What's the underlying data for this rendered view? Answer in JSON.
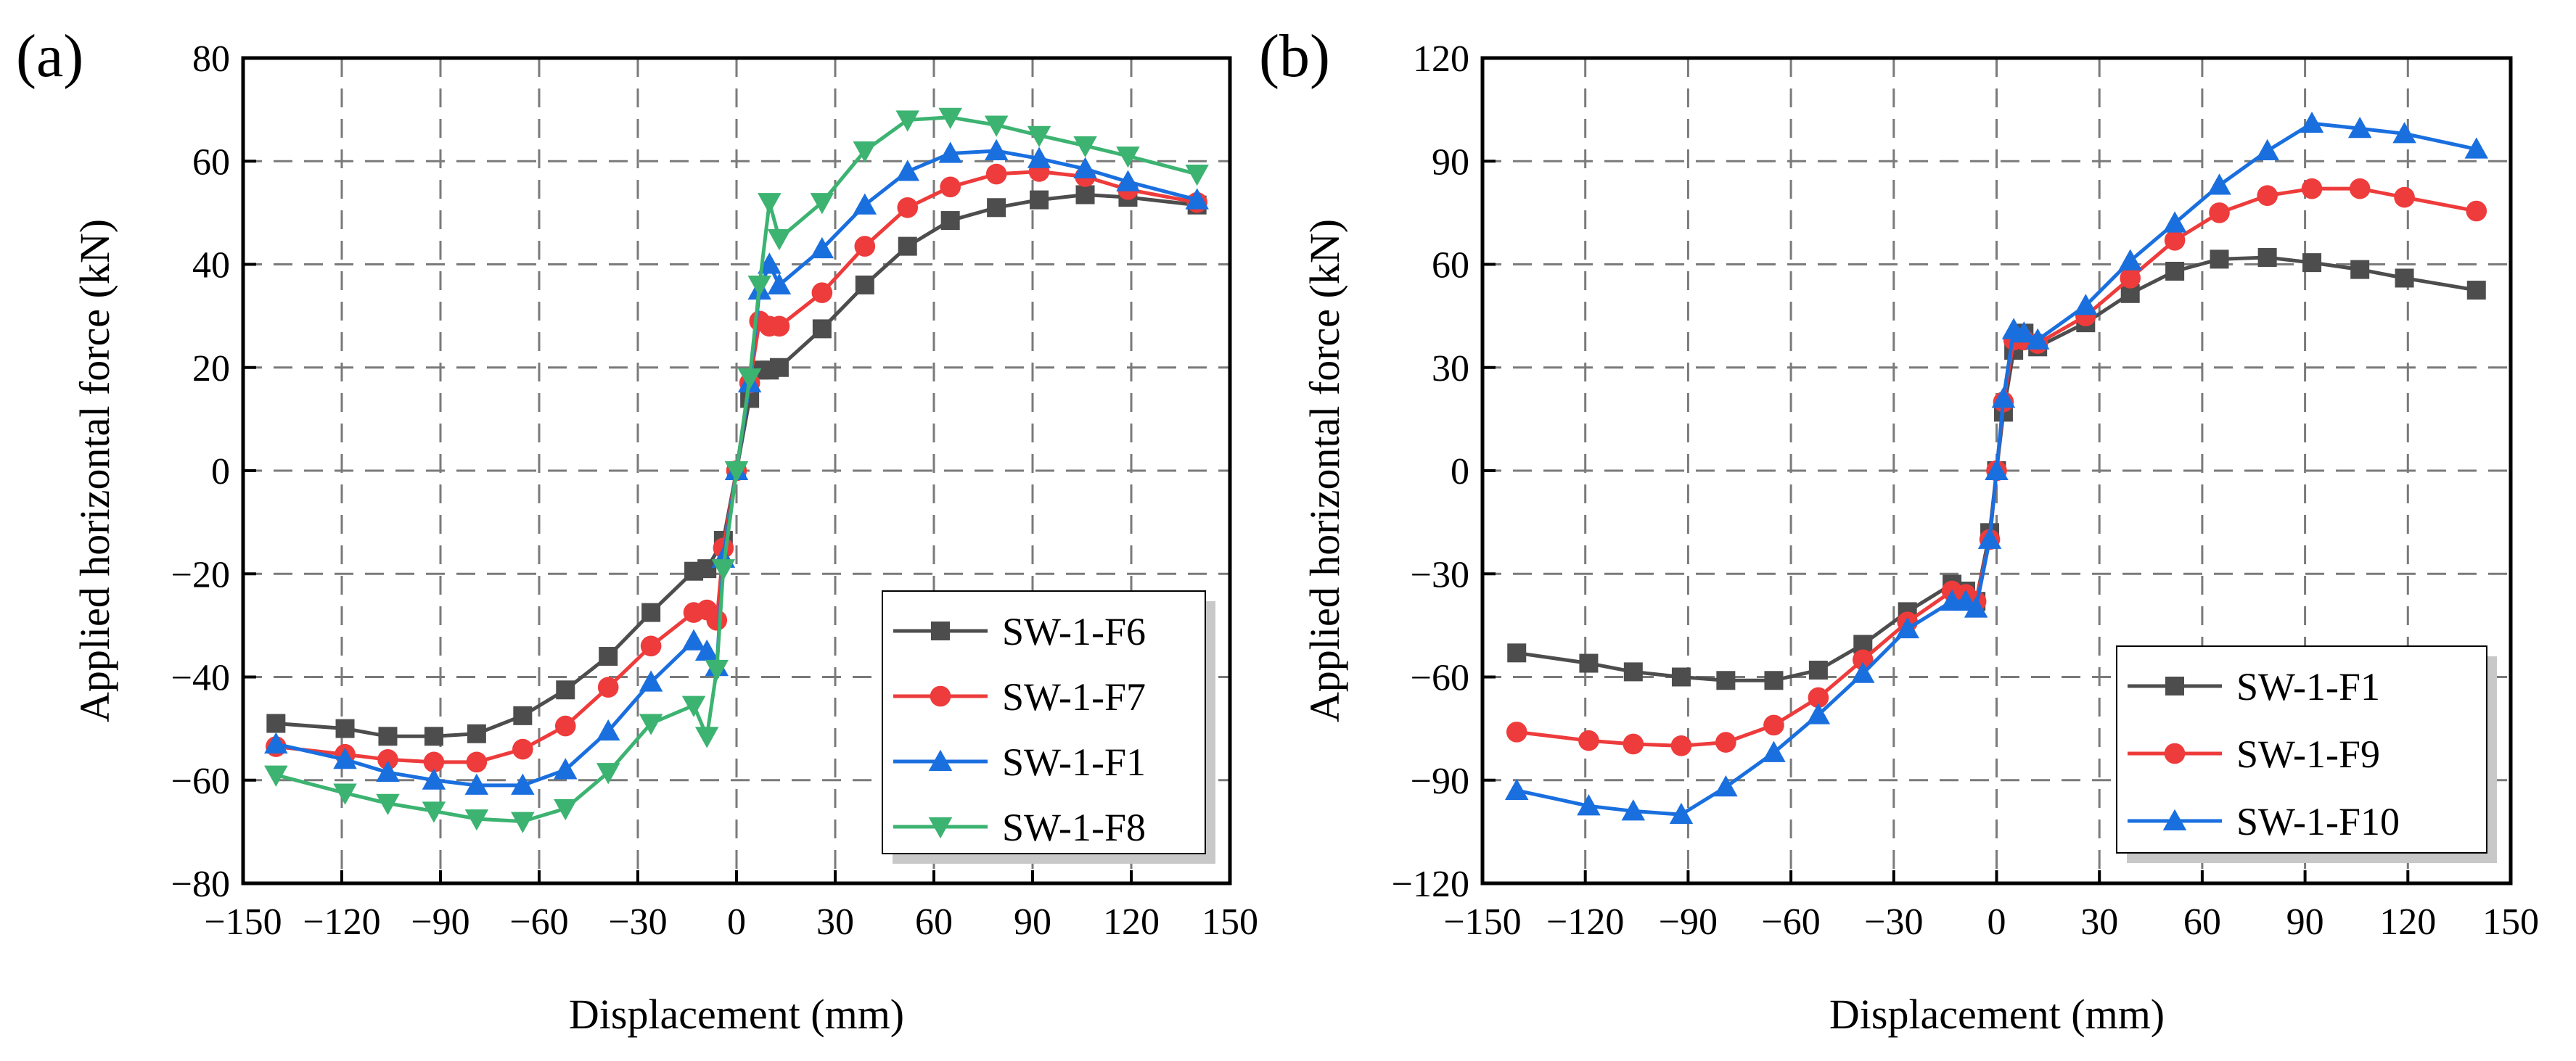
{
  "chart_data": [
    {
      "panel_label": "(a)",
      "type": "line",
      "title": "",
      "xlabel": "Displacement (mm)",
      "ylabel": "Applied horizontal force (kN)",
      "xlim": [
        -150,
        150
      ],
      "ylim": [
        -80,
        80
      ],
      "xticks": [
        -150,
        -120,
        -90,
        -60,
        -30,
        0,
        30,
        60,
        90,
        120,
        150
      ],
      "yticks": [
        -80,
        -60,
        -40,
        -20,
        0,
        20,
        40,
        60,
        80
      ],
      "xtick_labels": [
        "−150",
        "−120",
        "−90",
        "−60",
        "−30",
        "0",
        "30",
        "60",
        "90",
        "120",
        "150"
      ],
      "ytick_labels": [
        "−80",
        "−60",
        "−40",
        "−20",
        "0",
        "20",
        "40",
        "60",
        "80"
      ],
      "grid": true,
      "legend_position": "bottom-right",
      "series": [
        {
          "name": "SW-1-F6",
          "color": "#4d4d4d",
          "marker": "square",
          "points": [
            [
              -140,
              -49
            ],
            [
              -119,
              -50
            ],
            [
              -106,
              -51.5
            ],
            [
              -92,
              -51.5
            ],
            [
              -79,
              -51
            ],
            [
              -65,
              -47.5
            ],
            [
              -52,
              -42.5
            ],
            [
              -39,
              -36
            ],
            [
              -26,
              -27.5
            ],
            [
              -13,
              -19.5
            ],
            [
              -9,
              -19
            ],
            [
              -4,
              -13.5
            ],
            [
              0,
              0
            ],
            [
              4,
              14
            ],
            [
              7,
              19.5
            ],
            [
              10,
              19.5
            ],
            [
              13,
              20
            ],
            [
              26,
              27.5
            ],
            [
              39,
              36
            ],
            [
              52,
              43.5
            ],
            [
              65,
              48.5
            ],
            [
              79,
              51
            ],
            [
              92,
              52.5
            ],
            [
              106,
              53.5
            ],
            [
              119,
              53
            ],
            [
              140,
              51.5
            ]
          ]
        },
        {
          "name": "SW-1-F7",
          "color": "#ee3b3b",
          "marker": "circle",
          "points": [
            [
              -140,
              -53.5
            ],
            [
              -119,
              -55
            ],
            [
              -106,
              -56
            ],
            [
              -92,
              -56.5
            ],
            [
              -79,
              -56.5
            ],
            [
              -65,
              -54
            ],
            [
              -52,
              -49.5
            ],
            [
              -39,
              -42
            ],
            [
              -26,
              -34
            ],
            [
              -13,
              -27.5
            ],
            [
              -9,
              -27
            ],
            [
              -6,
              -29
            ],
            [
              -4,
              -15
            ],
            [
              0,
              0
            ],
            [
              4,
              17
            ],
            [
              7,
              29
            ],
            [
              10,
              28
            ],
            [
              13,
              28
            ],
            [
              26,
              34.5
            ],
            [
              39,
              43.5
            ],
            [
              52,
              51
            ],
            [
              65,
              55
            ],
            [
              79,
              57.5
            ],
            [
              92,
              58
            ],
            [
              106,
              57
            ],
            [
              119,
              54.5
            ],
            [
              140,
              52
            ]
          ]
        },
        {
          "name": "SW-1-F1",
          "color": "#1a6fdf",
          "marker": "triangle-up",
          "points": [
            [
              -140,
              -53
            ],
            [
              -119,
              -56
            ],
            [
              -106,
              -58.5
            ],
            [
              -92,
              -60
            ],
            [
              -79,
              -61
            ],
            [
              -65,
              -61
            ],
            [
              -52,
              -58
            ],
            [
              -39,
              -50.5
            ],
            [
              -26,
              -41
            ],
            [
              -13,
              -33
            ],
            [
              -9,
              -35
            ],
            [
              -6,
              -38
            ],
            [
              -4,
              -17
            ],
            [
              0,
              0
            ],
            [
              4,
              17
            ],
            [
              7,
              35
            ],
            [
              10,
              40
            ],
            [
              13,
              36
            ],
            [
              26,
              43
            ],
            [
              39,
              51.5
            ],
            [
              52,
              58
            ],
            [
              65,
              61.5
            ],
            [
              79,
              62
            ],
            [
              92,
              60.5
            ],
            [
              106,
              58.5
            ],
            [
              119,
              56
            ],
            [
              140,
              52.5
            ]
          ]
        },
        {
          "name": "SW-1-F8",
          "color": "#3cb371",
          "marker": "triangle-down",
          "points": [
            [
              -140,
              -59
            ],
            [
              -119,
              -62.5
            ],
            [
              -106,
              -64.5
            ],
            [
              -92,
              -66
            ],
            [
              -79,
              -67.5
            ],
            [
              -65,
              -68
            ],
            [
              -52,
              -65.5
            ],
            [
              -39,
              -58.5
            ],
            [
              -26,
              -49
            ],
            [
              -13,
              -45.5
            ],
            [
              -9,
              -51.5
            ],
            [
              -6,
              -38.5
            ],
            [
              -4,
              -19
            ],
            [
              0,
              0
            ],
            [
              4,
              18
            ],
            [
              7,
              36
            ],
            [
              10,
              52
            ],
            [
              13,
              45
            ],
            [
              26,
              52
            ],
            [
              39,
              62
            ],
            [
              52,
              68
            ],
            [
              65,
              68.5
            ],
            [
              79,
              67
            ],
            [
              92,
              65
            ],
            [
              106,
              63
            ],
            [
              119,
              61
            ],
            [
              140,
              57.5
            ]
          ]
        }
      ]
    },
    {
      "panel_label": "(b)",
      "type": "line",
      "title": "",
      "xlabel": "Displacement (mm)",
      "ylabel": "Applied horizontal force (kN)",
      "xlim": [
        -150,
        150
      ],
      "ylim": [
        -120,
        120
      ],
      "xticks": [
        -150,
        -120,
        -90,
        -60,
        -30,
        0,
        30,
        60,
        90,
        120,
        150
      ],
      "yticks": [
        -120,
        -90,
        -60,
        -30,
        0,
        30,
        60,
        90,
        120
      ],
      "xtick_labels": [
        "−150",
        "−120",
        "−90",
        "−60",
        "−30",
        "0",
        "30",
        "60",
        "90",
        "120",
        "150"
      ],
      "ytick_labels": [
        "−120",
        "−90",
        "−60",
        "−30",
        "0",
        "30",
        "60",
        "90",
        "120"
      ],
      "grid": true,
      "legend_position": "bottom-right",
      "series": [
        {
          "name": "SW-1-F1",
          "color": "#4d4d4d",
          "marker": "square",
          "points": [
            [
              -140,
              -53
            ],
            [
              -119,
              -56
            ],
            [
              -106,
              -58.5
            ],
            [
              -92,
              -60
            ],
            [
              -79,
              -61
            ],
            [
              -65,
              -61
            ],
            [
              -52,
              -58
            ],
            [
              -39,
              -50.5
            ],
            [
              -26,
              -41
            ],
            [
              -13,
              -33
            ],
            [
              -9,
              -35
            ],
            [
              -6,
              -38
            ],
            [
              -2,
              -18
            ],
            [
              0,
              0
            ],
            [
              2,
              17
            ],
            [
              5,
              35
            ],
            [
              8,
              40
            ],
            [
              12,
              36
            ],
            [
              26,
              43
            ],
            [
              39,
              51.5
            ],
            [
              52,
              58
            ],
            [
              65,
              61.5
            ],
            [
              79,
              62
            ],
            [
              92,
              60.5
            ],
            [
              106,
              58.5
            ],
            [
              119,
              56
            ],
            [
              140,
              52.5
            ]
          ]
        },
        {
          "name": "SW-1-F9",
          "color": "#ee3b3b",
          "marker": "circle",
          "points": [
            [
              -140,
              -76
            ],
            [
              -119,
              -78.5
            ],
            [
              -106,
              -79.5
            ],
            [
              -92,
              -80
            ],
            [
              -79,
              -79
            ],
            [
              -65,
              -74
            ],
            [
              -52,
              -66
            ],
            [
              -39,
              -55
            ],
            [
              -26,
              -44
            ],
            [
              -13,
              -35
            ],
            [
              -9,
              -36
            ],
            [
              -6,
              -38
            ],
            [
              -2,
              -20
            ],
            [
              0,
              0
            ],
            [
              2,
              20
            ],
            [
              5,
              38
            ],
            [
              8,
              38
            ],
            [
              12,
              37
            ],
            [
              26,
              45
            ],
            [
              39,
              56
            ],
            [
              52,
              67
            ],
            [
              65,
              75
            ],
            [
              79,
              80
            ],
            [
              92,
              82
            ],
            [
              106,
              82
            ],
            [
              119,
              79.5
            ],
            [
              140,
              75.5
            ]
          ]
        },
        {
          "name": "SW-1-F10",
          "color": "#1a6fdf",
          "marker": "triangle-up",
          "points": [
            [
              -140,
              -93
            ],
            [
              -119,
              -97.5
            ],
            [
              -106,
              -99
            ],
            [
              -92,
              -100
            ],
            [
              -79,
              -92
            ],
            [
              -65,
              -82
            ],
            [
              -52,
              -71
            ],
            [
              -39,
              -59
            ],
            [
              -26,
              -46
            ],
            [
              -13,
              -38
            ],
            [
              -9,
              -38
            ],
            [
              -6,
              -40
            ],
            [
              -2,
              -20
            ],
            [
              0,
              0
            ],
            [
              2,
              21
            ],
            [
              5,
              41
            ],
            [
              8,
              40
            ],
            [
              12,
              38
            ],
            [
              26,
              48
            ],
            [
              39,
              61
            ],
            [
              52,
              72
            ],
            [
              65,
              83
            ],
            [
              79,
              93
            ],
            [
              92,
              101
            ],
            [
              106,
              99.5
            ],
            [
              119,
              98
            ],
            [
              140,
              93.5
            ]
          ]
        }
      ]
    }
  ]
}
